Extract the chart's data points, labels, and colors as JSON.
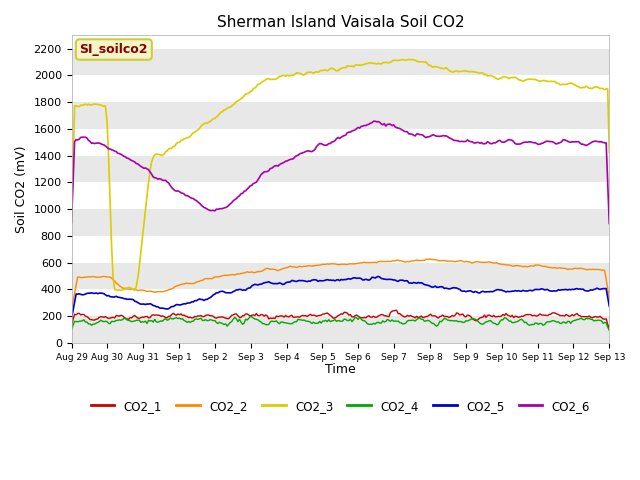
{
  "title": "Sherman Island Vaisala Soil CO2",
  "ylabel": "Soil CO2 (mV)",
  "xlabel": "Time",
  "watermark": "SI_soilco2",
  "fig_bg_color": "#ffffff",
  "plot_bg_color": "#ffffff",
  "band_colors": [
    "#e8e8e8",
    "#ffffff"
  ],
  "ylim": [
    0,
    2300
  ],
  "yticks": [
    0,
    200,
    400,
    600,
    800,
    1000,
    1200,
    1400,
    1600,
    1800,
    2000,
    2200
  ],
  "xtick_labels": [
    "Aug 29",
    "Aug 30",
    "Aug 31",
    "Sep 1",
    "Sep 2",
    "Sep 3",
    "Sep 4",
    "Sep 5",
    "Sep 6",
    "Sep 7",
    "Sep 8",
    "Sep 9",
    "Sep 10",
    "Sep 11",
    "Sep 12",
    "Sep 13"
  ],
  "n_points": 350,
  "series_colors": {
    "CO2_1": "#cc0000",
    "CO2_2": "#ff8800",
    "CO2_3": "#ddcc00",
    "CO2_4": "#00aa00",
    "CO2_5": "#0000cc",
    "CO2_6": "#aa00aa"
  },
  "legend_colors": {
    "CO2_1": "#cc0000",
    "CO2_2": "#ff8800",
    "CO2_3": "#ddcc00",
    "CO2_4": "#00aa00",
    "CO2_5": "#0000cc",
    "CO2_6": "#aa00aa"
  }
}
